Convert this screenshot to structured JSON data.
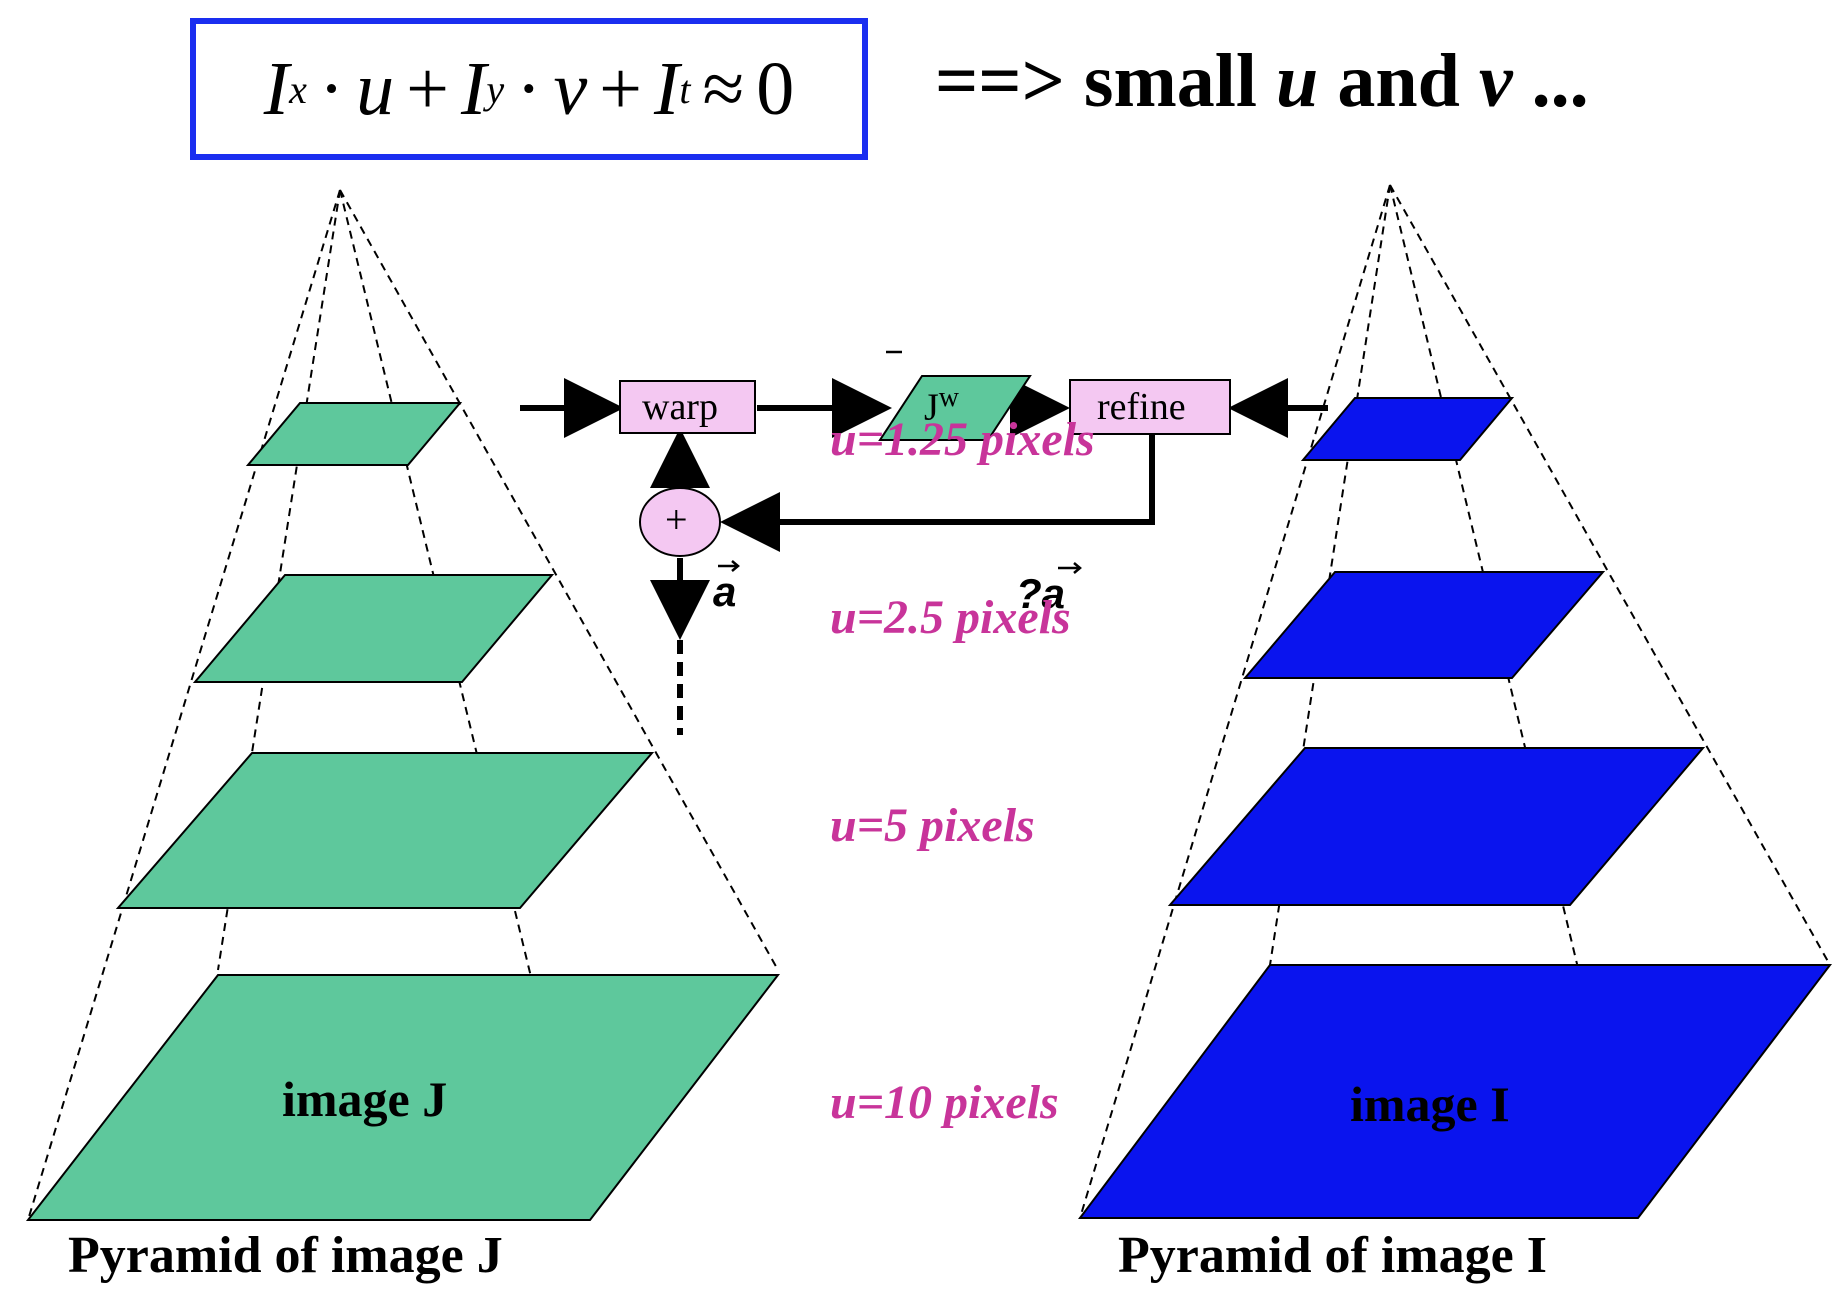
{
  "equation": {
    "Ix": "I",
    "x_sub": "x",
    "u": "u",
    "Iy": "I",
    "y_sub": "y",
    "v": "v",
    "It": "I",
    "t_sub": "t",
    "dot": "·",
    "plus": "+",
    "approx": "≈",
    "zero": "0",
    "tail_prefix": "==> small ",
    "tail_u": "u",
    "tail_and": " and ",
    "tail_v": "v",
    "tail_suffix": " ..."
  },
  "pyramid_j": {
    "caption": "Pyramid of image J",
    "base_label": "image J",
    "color": "#5ec89c"
  },
  "pyramid_i": {
    "caption": "Pyramid of image I",
    "base_label": "image I",
    "color": "#0a14ee"
  },
  "levels": [
    {
      "label": "u=1.25 pixels"
    },
    {
      "label": "u=2.5 pixels"
    },
    {
      "label": "u=5 pixels"
    },
    {
      "label": "u=10 pixels"
    }
  ],
  "flow": {
    "warp_label": "warp",
    "jw_label": "J",
    "jw_sup": "w",
    "refine_label": "refine",
    "plus_label": "+",
    "a_label": "a",
    "delta_a_prefix": "?",
    "delta_a_label": "a",
    "box_fill": "#f4c8f2"
  }
}
